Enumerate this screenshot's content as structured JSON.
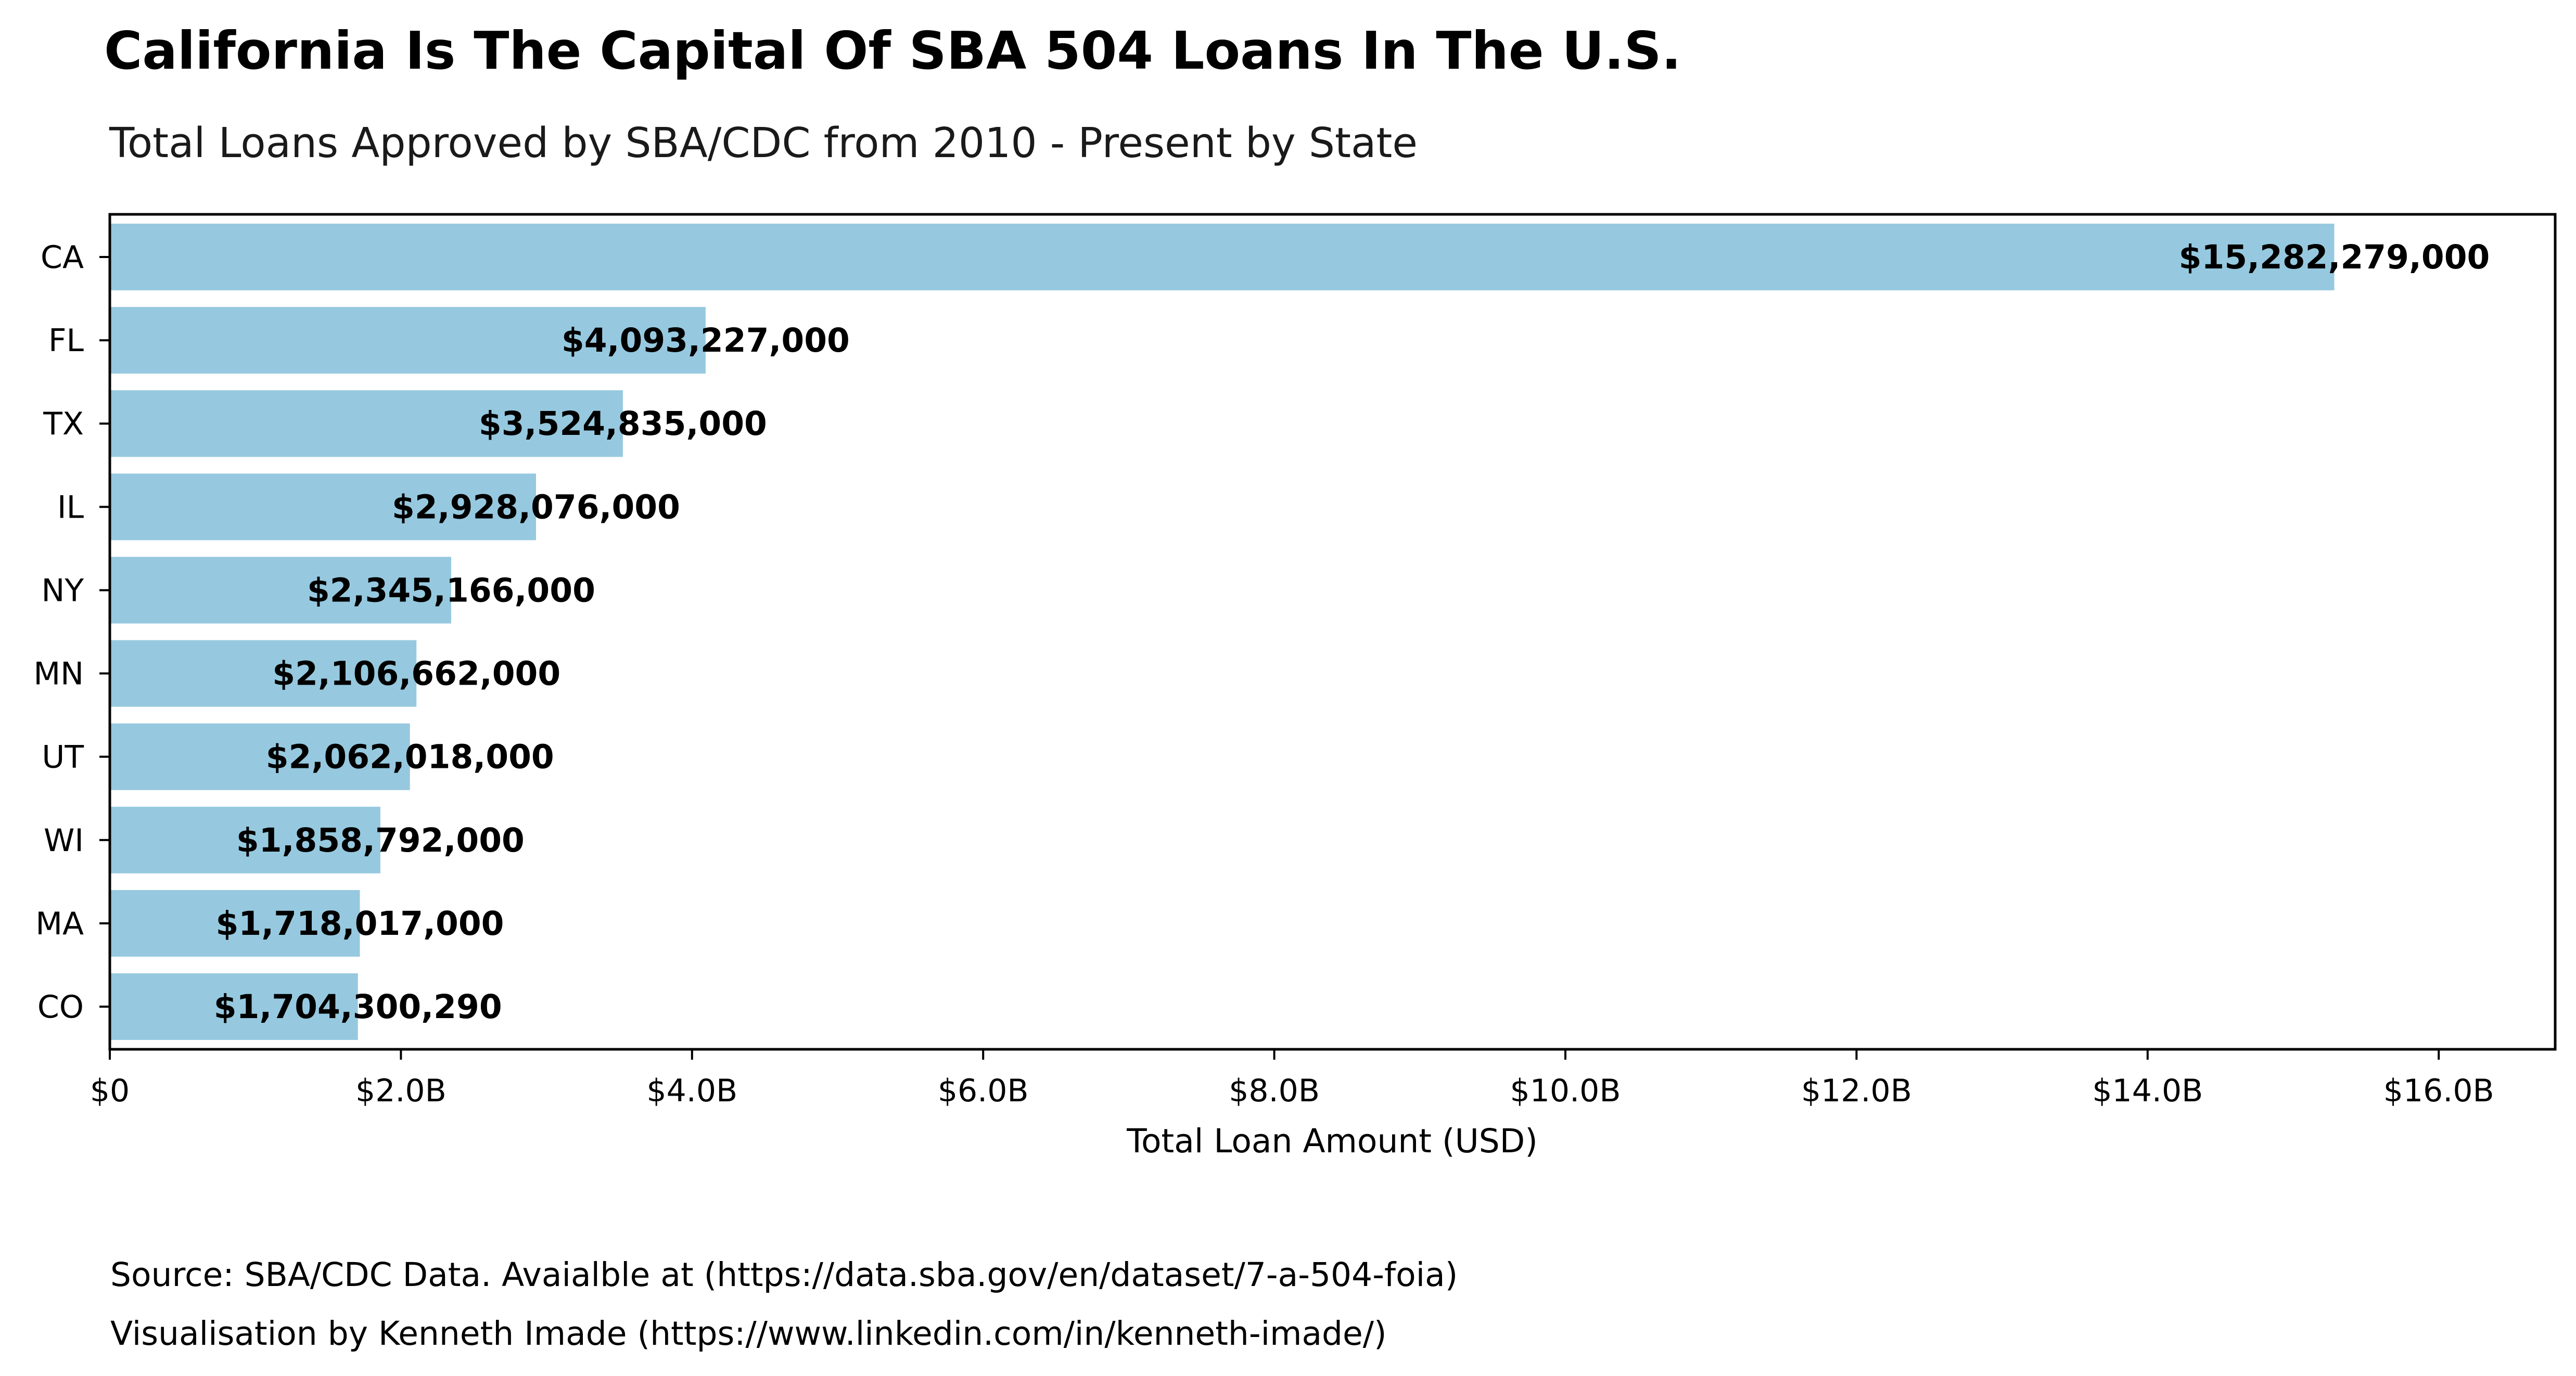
{
  "chart_data": {
    "type": "bar",
    "orientation": "horizontal",
    "title": "California Is The Capital Of SBA 504 Loans In The U.S.",
    "subtitle": "Total Loans Approved by SBA/CDC from 2010 - Present by State",
    "xlabel": "Total Loan Amount (USD)",
    "ylabel": "",
    "xlim": [
      0,
      16800000000
    ],
    "x_ticks": [
      {
        "value": 0,
        "label": "$0"
      },
      {
        "value": 2000000000,
        "label": "$2.0B"
      },
      {
        "value": 4000000000,
        "label": "$4.0B"
      },
      {
        "value": 6000000000,
        "label": "$6.0B"
      },
      {
        "value": 8000000000,
        "label": "$8.0B"
      },
      {
        "value": 10000000000,
        "label": "$10.0B"
      },
      {
        "value": 12000000000,
        "label": "$12.0B"
      },
      {
        "value": 14000000000,
        "label": "$14.0B"
      },
      {
        "value": 16000000000,
        "label": "$16.0B"
      }
    ],
    "grid": false,
    "bar_color": "#96c9df",
    "categories": [
      "CA",
      "FL",
      "TX",
      "IL",
      "NY",
      "MN",
      "UT",
      "WI",
      "MA",
      "CO"
    ],
    "values": [
      15282279000,
      4093227000,
      3524835000,
      2928076000,
      2345166000,
      2106662000,
      2062018000,
      1858792000,
      1718017000,
      1704300290
    ],
    "data_labels": [
      "$15,282,279,000",
      "$4,093,227,000",
      "$3,524,835,000",
      "$2,928,076,000",
      "$2,345,166,000",
      "$2,106,662,000",
      "$2,062,018,000",
      "$1,858,792,000",
      "$1,718,017,000",
      "$1,704,300,290"
    ]
  },
  "footnotes": {
    "source": "Source: SBA/CDC Data. Avaialble at (https://data.sba.gov/en/dataset/7-a-504-foia)",
    "credit": "Visualisation by Kenneth Imade (https://www.linkedin.com/in/kenneth-imade/)"
  }
}
